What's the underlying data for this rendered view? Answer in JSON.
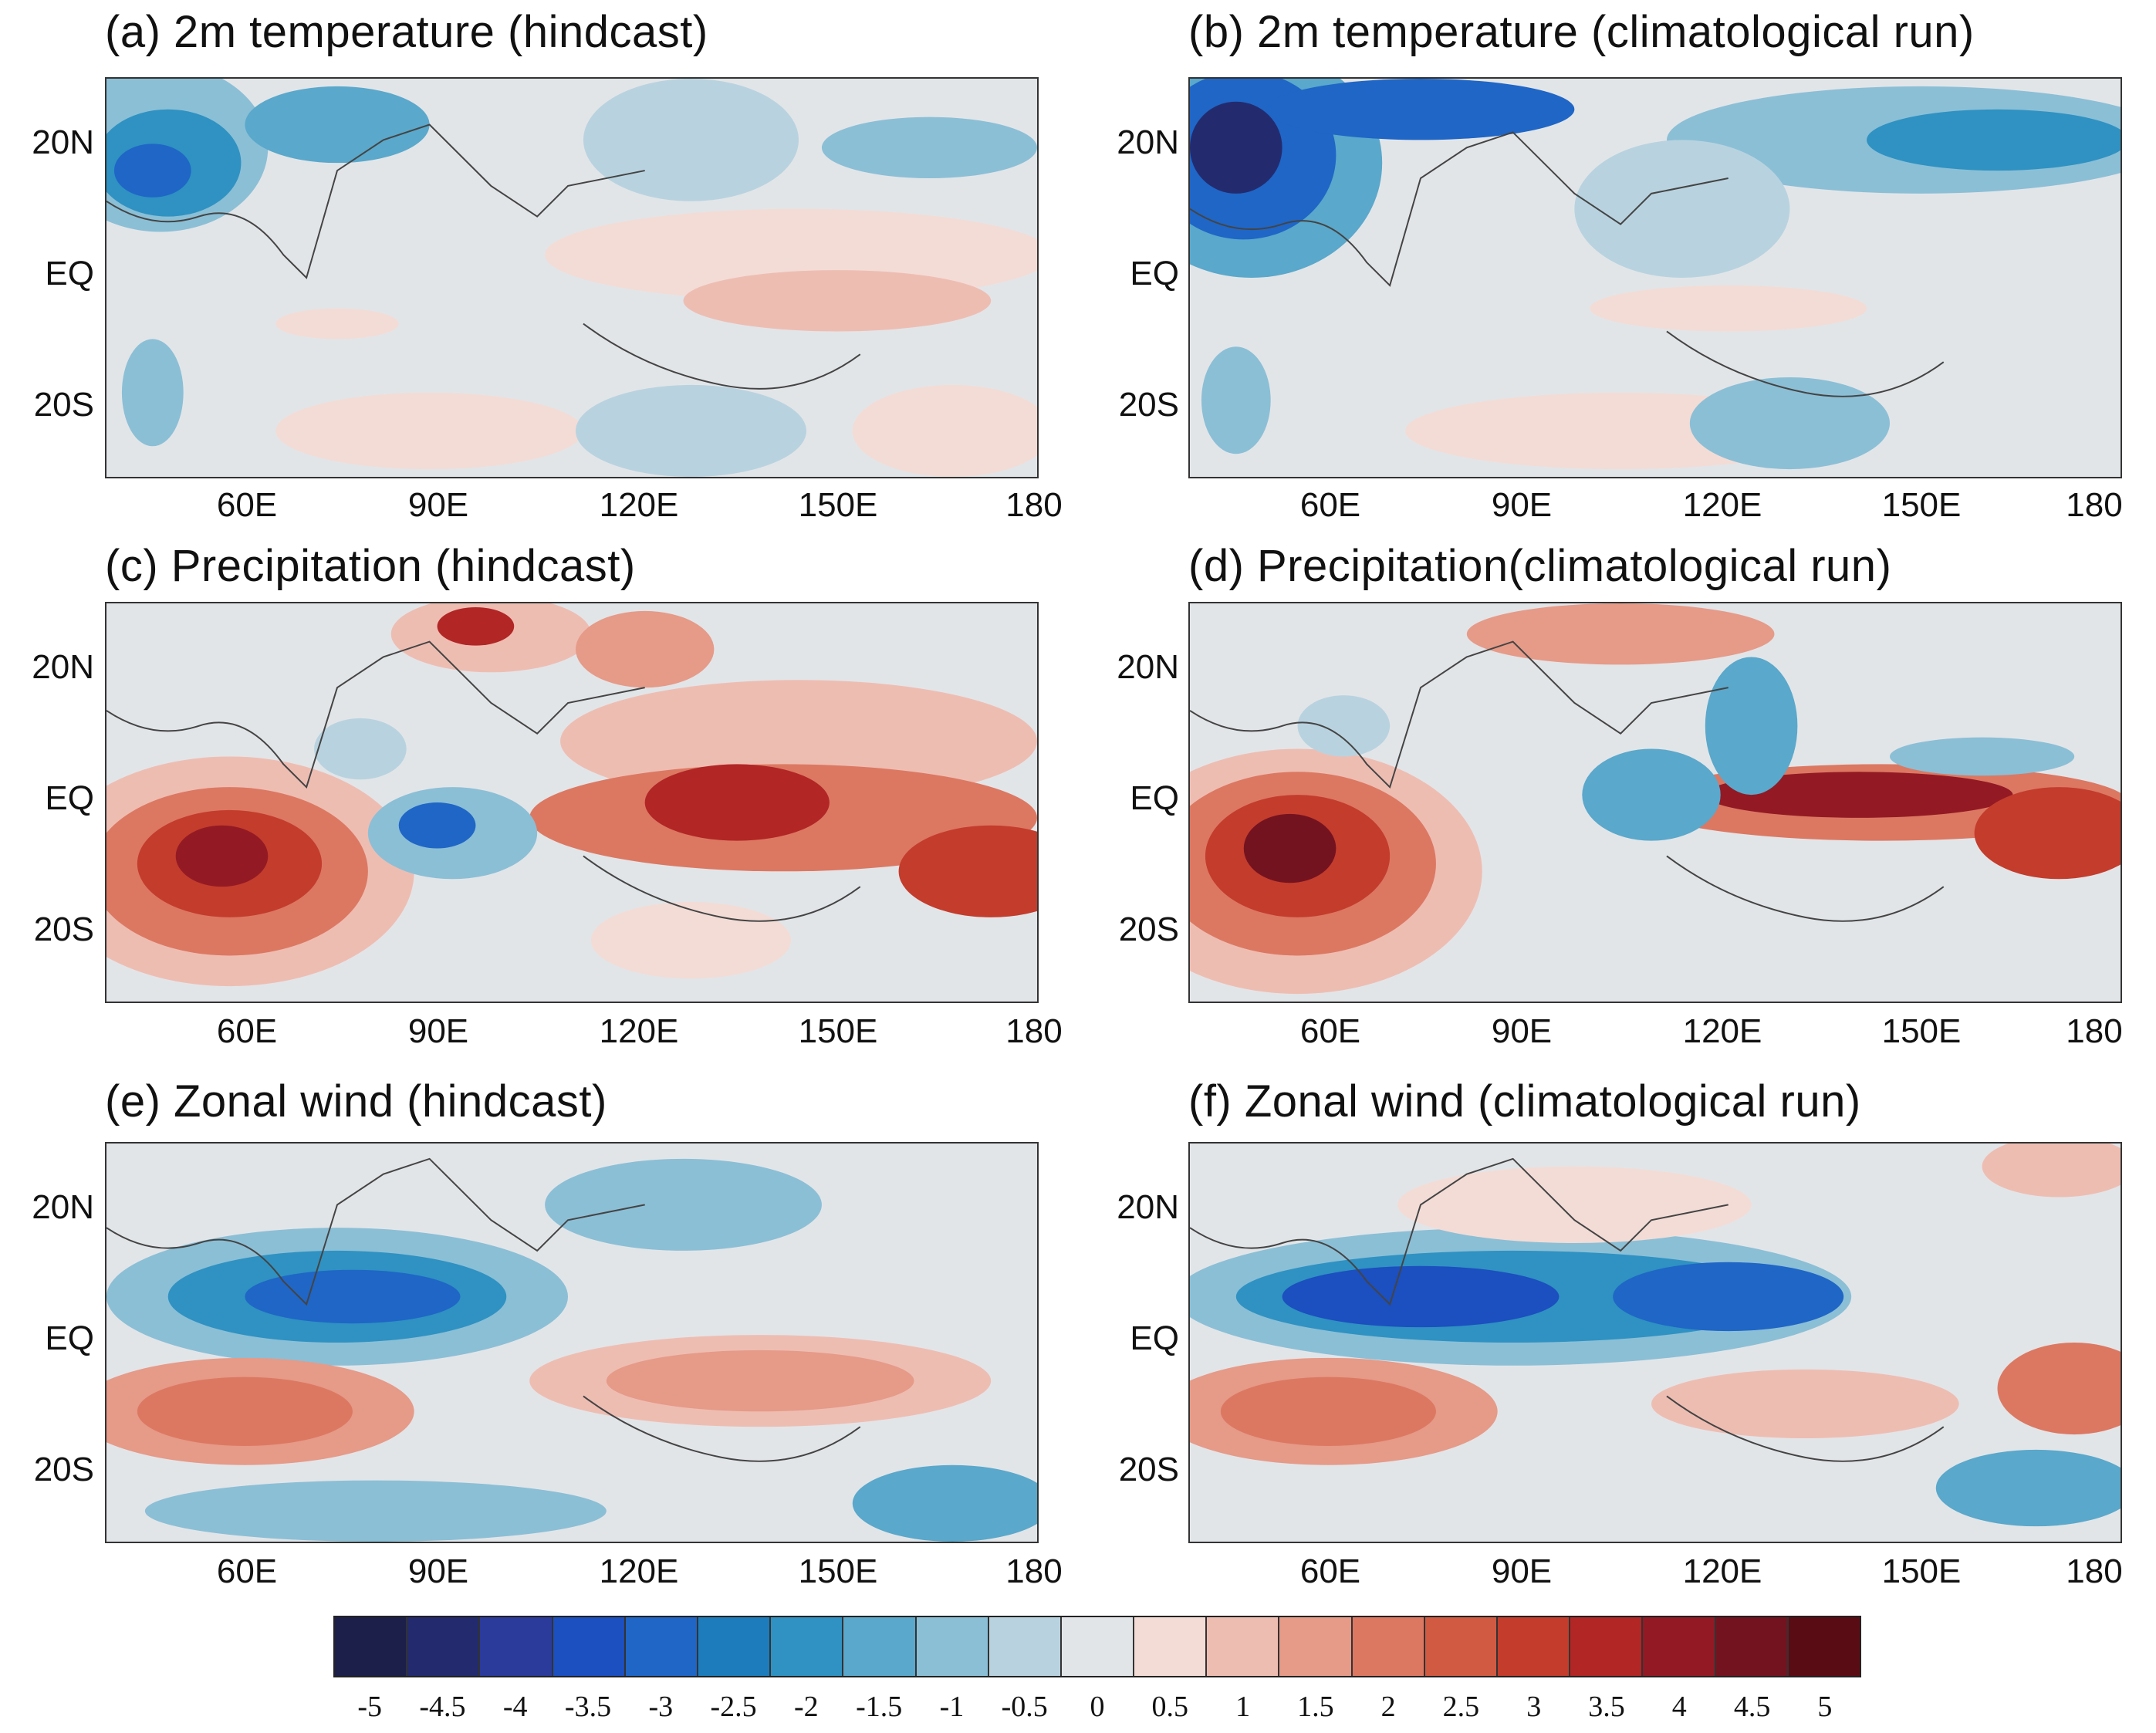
{
  "panels": [
    {
      "id": "a",
      "title": "(a) 2m temperature (hindcast)"
    },
    {
      "id": "b",
      "title": "(b) 2m temperature (climatological run)"
    },
    {
      "id": "c",
      "title": "(c) Precipitation (hindcast)"
    },
    {
      "id": "d",
      "title": "(d) Precipitation(climatological run)"
    },
    {
      "id": "e",
      "title": "(e) Zonal wind (hindcast)"
    },
    {
      "id": "f",
      "title": "(f) Zonal wind (climatological run)"
    }
  ],
  "axes": {
    "lat_labels": [
      "20N",
      "EQ",
      "20S"
    ],
    "lon_labels": [
      "60E",
      "90E",
      "120E",
      "150E",
      "180"
    ]
  },
  "colorbar": {
    "labels": [
      "-5",
      "-4.5",
      "-4",
      "-3.5",
      "-3",
      "-2.5",
      "-2",
      "-1.5",
      "-1",
      "-0.5",
      "0",
      "0.5",
      "1",
      "1.5",
      "2",
      "2.5",
      "3",
      "3.5",
      "4",
      "4.5",
      "5"
    ],
    "colors": [
      "#1c1f4a",
      "#232b6e",
      "#2b3b9c",
      "#1c4fbf",
      "#1f66c6",
      "#1d7dbc",
      "#2f92c2",
      "#5aa8cb",
      "#8bbfd6",
      "#b8d3df",
      "#e2e5e8",
      "#f3dcd6",
      "#eebdb2",
      "#e69a88",
      "#dc7862",
      "#d05a42",
      "#c43c2c",
      "#b22626",
      "#931a24",
      "#741320",
      "#5a0c14"
    ]
  }
}
